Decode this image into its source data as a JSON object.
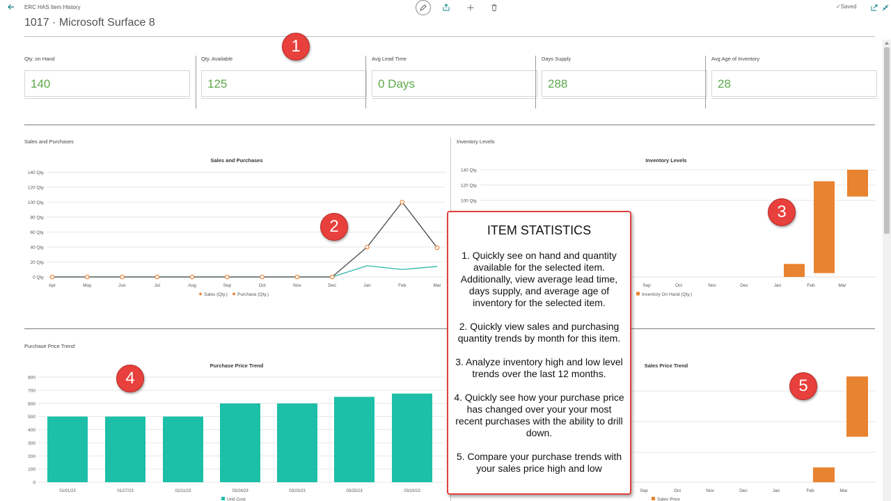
{
  "window": {
    "title": "ERC HAS Item History",
    "item_title": "1017 · Microsoft Surface 8",
    "saved_label": "Saved"
  },
  "kpis": [
    {
      "label": "Qty. on Hand",
      "value": "140"
    },
    {
      "label": "Qty. Available",
      "value": "125"
    },
    {
      "label": "Avg Lead Time",
      "value": "0 Days"
    },
    {
      "label": "Days Supply",
      "value": "288"
    },
    {
      "label": "Avg Age of Inventory",
      "value": "28"
    }
  ],
  "colors": {
    "accent_green": "#5ba849",
    "sales_line": "#4a4a4a",
    "purchase_line": "#26b8a8",
    "marker": "#e8843b",
    "inventory_bar": "#e8832f",
    "price_bar": "#1dbfa8",
    "badge": "#e8403c"
  },
  "badges": [
    "1",
    "2",
    "3",
    "4",
    "5"
  ],
  "callout": {
    "title": "ITEM STATISTICS",
    "items": [
      "1. Quickly see on hand and quantity available for the selected item. Additionally, view average lead time, days supply, and average age of inventory for the selected item.",
      "2. Quickly view sales and purchasing quantity trends by month for this item.",
      "3. Analyze inventory high and low level trends over the last 12 months.",
      "4. Quickly see how your purchase price has changed over your your most recent purchases with the ability to drill down.",
      "5. Compare your purchase trends with your sales price high and low"
    ]
  },
  "chart_data": [
    {
      "part_label": "Sales and Purchases",
      "type": "line",
      "title": "Sales and Purchases",
      "categories": [
        "Apr",
        "May",
        "Jun",
        "Jul",
        "Aug",
        "Sep",
        "Oct",
        "Nov",
        "Dec",
        "Jan",
        "Feb",
        "Mar"
      ],
      "y_ticks": [
        "0 Qty.",
        "20 Qty.",
        "40 Qty.",
        "60 Qty.",
        "80 Qty.",
        "100 Qty.",
        "120 Qty.",
        "140 Qty."
      ],
      "ylim": [
        0,
        140
      ],
      "series": [
        {
          "name": "Sales (Qty.)",
          "values": [
            0,
            0,
            0,
            0,
            0,
            0,
            0,
            0,
            0,
            40,
            100,
            39
          ]
        },
        {
          "name": "Purchase (Qty.)",
          "values": [
            0,
            0,
            0,
            0,
            0,
            0,
            0,
            0,
            0,
            15,
            10,
            14
          ]
        }
      ],
      "legend_placement": "bottom",
      "grid": true
    },
    {
      "part_label": "Inventory Levels",
      "type": "bar",
      "title": "Inventory Levels",
      "categories": [
        "Sep",
        "Oct",
        "Nov",
        "Dec",
        "Jan",
        "Feb",
        "Mar"
      ],
      "y_ticks": [
        "140 Qty.",
        "120 Qty.",
        "100 Qty."
      ],
      "ylim": [
        0,
        140
      ],
      "series": [
        {
          "name": "Inventory On Hand (Qty.)",
          "ranges": [
            null,
            null,
            null,
            null,
            [
              0,
              17
            ],
            [
              5,
              125
            ],
            [
              105,
              140
            ]
          ]
        }
      ],
      "legend_placement": "bottom",
      "grid": true
    },
    {
      "part_label": "Purchase Price Trend",
      "type": "bar",
      "title": "Purchase Price Trend",
      "categories": [
        "01/01/23",
        "01/27/23",
        "02/11/23",
        "03/24/23",
        "03/23/23",
        "03/25/23",
        "03/10/23"
      ],
      "y_ticks": [
        "0",
        "100",
        "200",
        "300",
        "400",
        "500",
        "600",
        "700",
        "800"
      ],
      "ylim": [
        0,
        800
      ],
      "series": [
        {
          "name": "Unit Cost",
          "values": [
            500,
            500,
            500,
            600,
            600,
            650,
            675
          ]
        }
      ],
      "legend_placement": "bottom",
      "grid": true
    },
    {
      "part_label": "",
      "type": "bar",
      "title": "Sales Price Trend",
      "categories": [
        "Sep",
        "Oct",
        "Nov",
        "Dec",
        "Jan",
        "Feb",
        "Mar"
      ],
      "series": [
        {
          "name": "Sales Price",
          "ranges": [
            null,
            null,
            null,
            null,
            null,
            [
              0,
              0.14
            ],
            [
              0.43,
              1.0
            ]
          ]
        }
      ],
      "legend_placement": "bottom",
      "grid": true
    }
  ]
}
